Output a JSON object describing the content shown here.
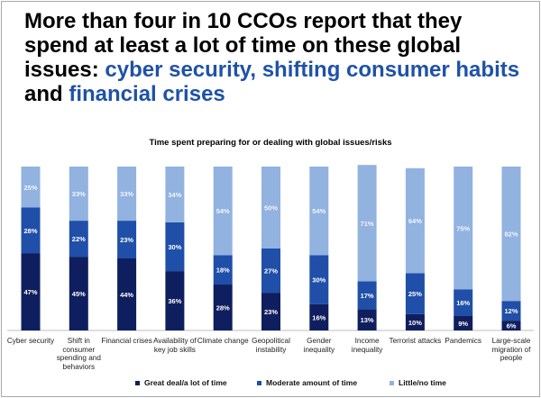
{
  "headline": {
    "part1": "More than four in 10 CCOs report that they spend at least a lot of time on these global issues: ",
    "highlight1": "cyber security, shifting consumer habits",
    "part2": " and ",
    "highlight2": "financial crises"
  },
  "colors": {
    "great": "#0f1e5e",
    "moderate": "#1f4fa8",
    "little": "#92b2e0",
    "highlight": "#1f52a8"
  },
  "chart_data": {
    "type": "bar",
    "stacked": true,
    "title": "Time spent preparing for or dealing with global issues/risks",
    "categories": [
      "Cyber security",
      "Shift in consumer spending and behaviors",
      "Financial crises",
      "Availability of key job skills",
      "Climate change",
      "Geopolitical instability",
      "Gender inequality",
      "Income inequality",
      "Terrorist attacks",
      "Pandemics",
      "Large-scale migration of people"
    ],
    "series": [
      {
        "name": "Great deal/a lot of time",
        "values": [
          47,
          45,
          44,
          36,
          28,
          23,
          16,
          13,
          10,
          9,
          6
        ]
      },
      {
        "name": "Moderate amount of time",
        "values": [
          28,
          22,
          23,
          30,
          18,
          27,
          30,
          17,
          25,
          16,
          12
        ]
      },
      {
        "name": "Little/no time",
        "values": [
          25,
          33,
          33,
          34,
          54,
          50,
          54,
          71,
          64,
          75,
          82
        ]
      }
    ],
    "value_labels": [
      [
        "47%",
        "45%",
        "44%",
        "36%",
        "28%",
        "23%",
        "16%",
        "13%",
        "10%",
        "9%",
        "6%"
      ],
      [
        "28%",
        "22%",
        "23%",
        "30%",
        "18%",
        "27%",
        "30%",
        "17%",
        "25%",
        "16%",
        "12%"
      ],
      [
        "25%",
        "33%",
        "33%",
        "34%",
        "54%",
        "50%",
        "54%",
        "71%",
        "64%",
        "75%",
        "82%"
      ]
    ],
    "ylim": [
      0,
      100
    ],
    "legend_position": "bottom"
  }
}
